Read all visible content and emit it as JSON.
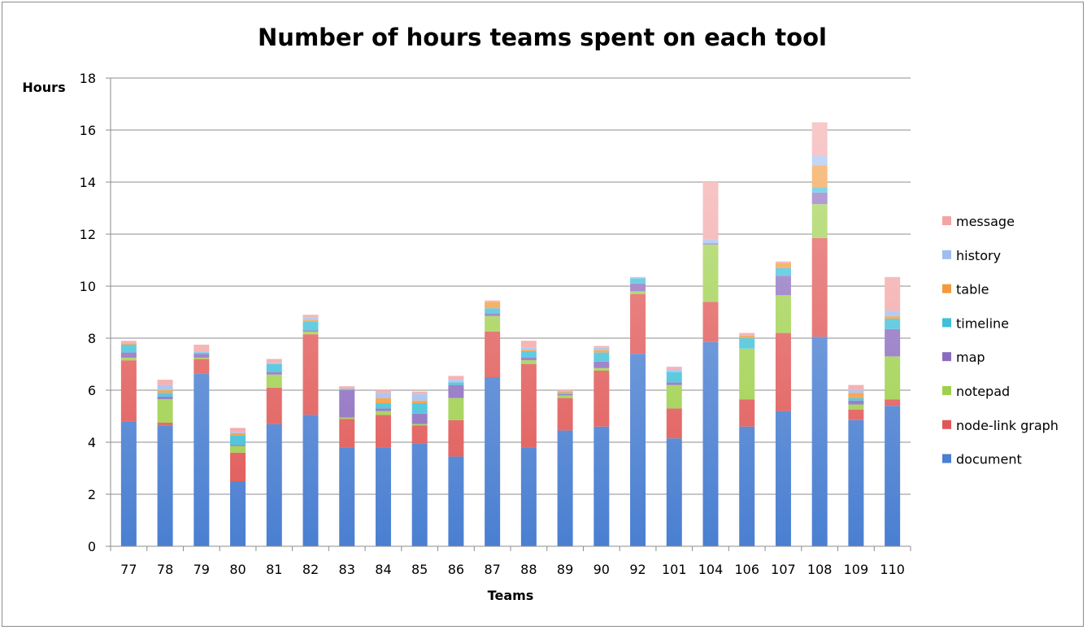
{
  "chart_data": {
    "type": "bar",
    "stacked": true,
    "title": "Number of hours teams spent on each tool",
    "xlabel": "Teams",
    "ylabel": "Hours",
    "ylim": [
      0,
      18
    ],
    "yticks": [
      0,
      2,
      4,
      6,
      8,
      10,
      12,
      14,
      16,
      18
    ],
    "grid": true,
    "legend_position": "right",
    "categories": [
      "77",
      "78",
      "79",
      "80",
      "81",
      "82",
      "83",
      "84",
      "85",
      "86",
      "87",
      "88",
      "89",
      "90",
      "92",
      "101",
      "104",
      "106",
      "107",
      "108",
      "109",
      "110"
    ],
    "series": [
      {
        "name": "document",
        "color": "#4a7fd1",
        "values": [
          4.8,
          4.65,
          6.65,
          2.5,
          4.7,
          5.05,
          3.8,
          3.8,
          3.95,
          3.45,
          6.5,
          3.8,
          4.45,
          4.6,
          7.4,
          4.15,
          7.85,
          4.6,
          5.2,
          8.05,
          4.85,
          5.4
        ]
      },
      {
        "name": "node-link graph",
        "color": "#e05856",
        "values": [
          2.35,
          0.1,
          0.55,
          1.1,
          1.4,
          3.1,
          1.1,
          1.25,
          0.7,
          1.4,
          1.75,
          3.2,
          1.25,
          2.15,
          2.3,
          1.15,
          1.55,
          1.05,
          3.0,
          3.8,
          0.4,
          0.25
        ]
      },
      {
        "name": "notepad",
        "color": "#9ed04b",
        "values": [
          0.1,
          0.9,
          0.05,
          0.25,
          0.5,
          0.1,
          0.05,
          0.15,
          0.05,
          0.85,
          0.6,
          0.15,
          0.1,
          0.1,
          0.1,
          0.9,
          2.2,
          1.95,
          1.45,
          1.3,
          0.2,
          1.65
        ]
      },
      {
        "name": "map",
        "color": "#8b6bbf",
        "values": [
          0.2,
          0.1,
          0.15,
          0.05,
          0.1,
          0.05,
          1.05,
          0.1,
          0.4,
          0.5,
          0.1,
          0.1,
          0.05,
          0.25,
          0.3,
          0.1,
          0.05,
          0.0,
          0.75,
          0.45,
          0.15,
          1.05
        ]
      },
      {
        "name": "timeline",
        "color": "#3fbfd8",
        "values": [
          0.3,
          0.15,
          0.05,
          0.35,
          0.3,
          0.35,
          0.05,
          0.2,
          0.4,
          0.1,
          0.2,
          0.25,
          0.05,
          0.35,
          0.2,
          0.4,
          0.0,
          0.4,
          0.3,
          0.2,
          0.1,
          0.4
        ]
      },
      {
        "name": "table",
        "color": "#f39a3c",
        "values": [
          0.05,
          0.1,
          0.0,
          0.1,
          0.0,
          0.05,
          0.0,
          0.2,
          0.1,
          0.0,
          0.25,
          0.05,
          0.05,
          0.1,
          0.0,
          0.0,
          0.0,
          0.1,
          0.2,
          0.85,
          0.2,
          0.1
        ]
      },
      {
        "name": "history",
        "color": "#9fbdf0",
        "values": [
          0.0,
          0.2,
          0.05,
          0.05,
          0.05,
          0.1,
          0.0,
          0.2,
          0.25,
          0.1,
          0.0,
          0.1,
          0.0,
          0.1,
          0.05,
          0.1,
          0.15,
          0.0,
          0.0,
          0.35,
          0.1,
          0.2
        ]
      },
      {
        "name": "message",
        "color": "#f3a4a4",
        "values": [
          0.1,
          0.2,
          0.25,
          0.15,
          0.15,
          0.1,
          0.1,
          0.1,
          0.1,
          0.15,
          0.05,
          0.25,
          0.05,
          0.05,
          0.0,
          0.1,
          2.2,
          0.1,
          0.05,
          1.3,
          0.2,
          1.3
        ]
      }
    ]
  }
}
